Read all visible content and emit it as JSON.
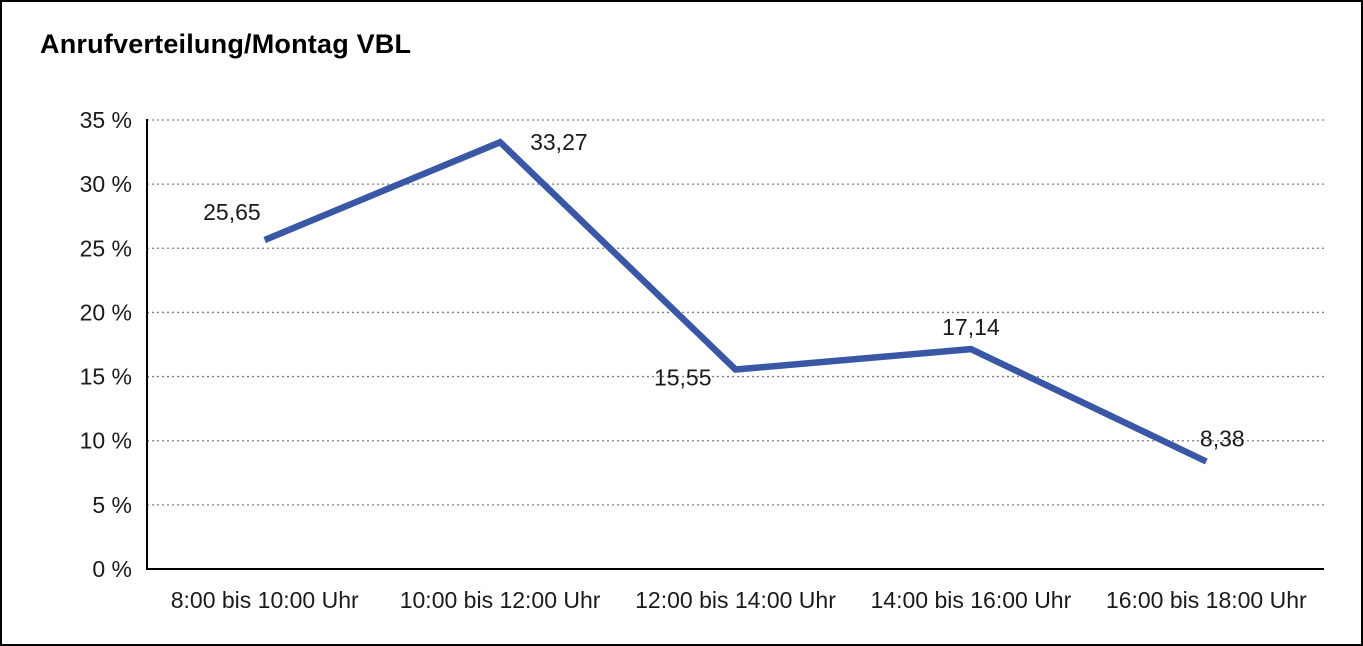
{
  "page": {
    "background": "#ffffff",
    "border_color": "#000000"
  },
  "chart_data": {
    "type": "line",
    "title": "Anrufverteilung/Montag VBL",
    "categories": [
      "8:00 bis 10:00 Uhr",
      "10:00 bis 12:00 Uhr",
      "12:00 bis 14:00 Uhr",
      "14:00 bis 16:00 Uhr",
      "16:00 bis 18:00 Uhr"
    ],
    "values": [
      25.65,
      33.27,
      15.55,
      17.14,
      8.38
    ],
    "value_labels": [
      "25,65",
      "33,27",
      "15,55",
      "17,14",
      "8,38"
    ],
    "value_label_placements": [
      "above-left",
      "right",
      "below-left",
      "above",
      "above-right"
    ],
    "xlabel": "",
    "ylabel": "",
    "ylim": [
      0,
      35
    ],
    "y_tick_values": [
      0,
      5,
      10,
      15,
      20,
      25,
      30,
      35
    ],
    "y_tick_labels": [
      "0 %",
      "5 %",
      "10 %",
      "15 %",
      "20 %",
      "25 %",
      "30 %",
      "35 %"
    ],
    "grid": "horizontal-dotted",
    "legend": "none",
    "colors": {
      "line": "#3A57A5",
      "grid": "#7f7f7f",
      "axis": "#000000",
      "text": "#1a1a1a"
    }
  }
}
